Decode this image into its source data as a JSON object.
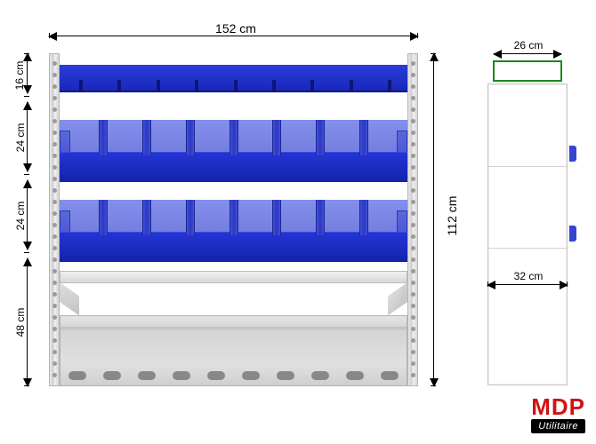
{
  "units": "cm",
  "front_view": {
    "width_cm": 152,
    "height_cm": 112,
    "section_heights_cm": [
      16,
      24,
      24,
      48
    ],
    "uprights": {
      "color_light": "#e8e8e8",
      "color_dark": "#cfcfcf",
      "border": "#b5b5b5"
    },
    "top_shelf": {
      "color_top": "#2a3ddc",
      "color_bottom": "#1928b8",
      "peg_count": 9,
      "peg_color": "#0d157a"
    },
    "bin_rows": {
      "count": 2,
      "dividers_per_row": 7,
      "divider_color": "#2a38c2",
      "bin_back_color": "#6f7be8",
      "bin_front_color": "#2335d6",
      "bin_side_color": "#5a68de"
    },
    "mid_shelf": {
      "color": "#e0e0e0",
      "border": "#bcbcbc"
    },
    "base_panel": {
      "color": "#e0e0e0",
      "slot_count": 10,
      "slot_color": "#888888"
    }
  },
  "side_view": {
    "depth_top_cm": 26,
    "depth_body_cm": 32,
    "top_frame_color": "#1b8a1b",
    "body_color": "#ffffff",
    "body_border": "#c8c8c8",
    "tab_color": "#3545d0",
    "tab_positions": [
      0.22,
      0.48
    ]
  },
  "dimensions": {
    "width_label": "152 cm",
    "height_label": "112 cm",
    "row1_label": "16 cm",
    "row2_label": "24 cm",
    "row3_label": "24 cm",
    "row4_label": "48 cm",
    "side_top_label": "26 cm",
    "side_body_label": "32 cm"
  },
  "brand": {
    "name": "MDP",
    "subtitle": "Utilitaire",
    "name_color": "#d11212",
    "sub_bg": "#000000",
    "sub_color": "#ffffff"
  },
  "background_color": "#ffffff"
}
